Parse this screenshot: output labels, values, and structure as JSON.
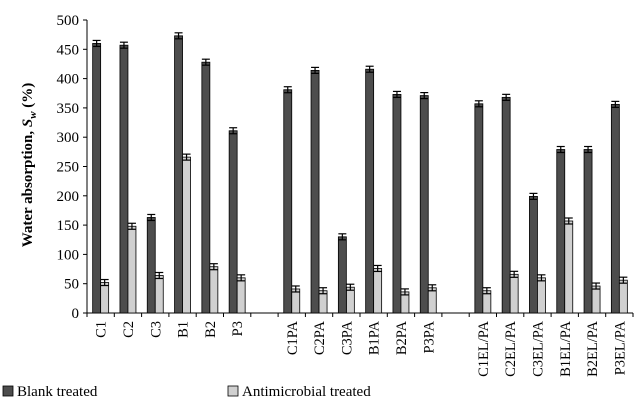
{
  "chart_data": {
    "type": "bar",
    "ylabel": {
      "main": "Water absorption, ",
      "symbol": "S",
      "subscript": "w",
      "unit": " (%)"
    },
    "ylim": [
      0,
      500
    ],
    "yticks": [
      "0",
      "50",
      "100",
      "150",
      "200",
      "250",
      "300",
      "350",
      "400",
      "450",
      "500"
    ],
    "grid": false,
    "legend_position": "bottom",
    "categories": [
      "C1",
      "C2",
      "C3",
      "B1",
      "B2",
      "P3",
      "",
      "C1PA",
      "C2PA",
      "C3PA",
      "B1PA",
      "B2PA",
      "P3PA",
      "",
      "C1EL/PA",
      "C2EL/PA",
      "C3EL/PA",
      "B1EL/PA",
      "B2EL/PA",
      "P3EL/PA"
    ],
    "series": [
      {
        "name": "Blank treated",
        "color": "#4d4d4d",
        "values": [
          460,
          457,
          163,
          473,
          428,
          311,
          null,
          381,
          414,
          null,
          416,
          373,
          371,
          null,
          357,
          368,
          199,
          279,
          279,
          356
        ]
      },
      {
        "name": "Antimicrobial treated",
        "color": "#d0d0d0",
        "values": [
          52,
          148,
          64,
          266,
          79,
          60,
          null,
          41,
          38,
          44,
          76,
          36,
          43,
          null,
          38,
          66,
          60,
          157,
          46,
          56
        ]
      }
    ],
    "extra_bars": [
      {
        "series": "Blank treated",
        "category": "C3PA",
        "value": 130
      }
    ]
  }
}
